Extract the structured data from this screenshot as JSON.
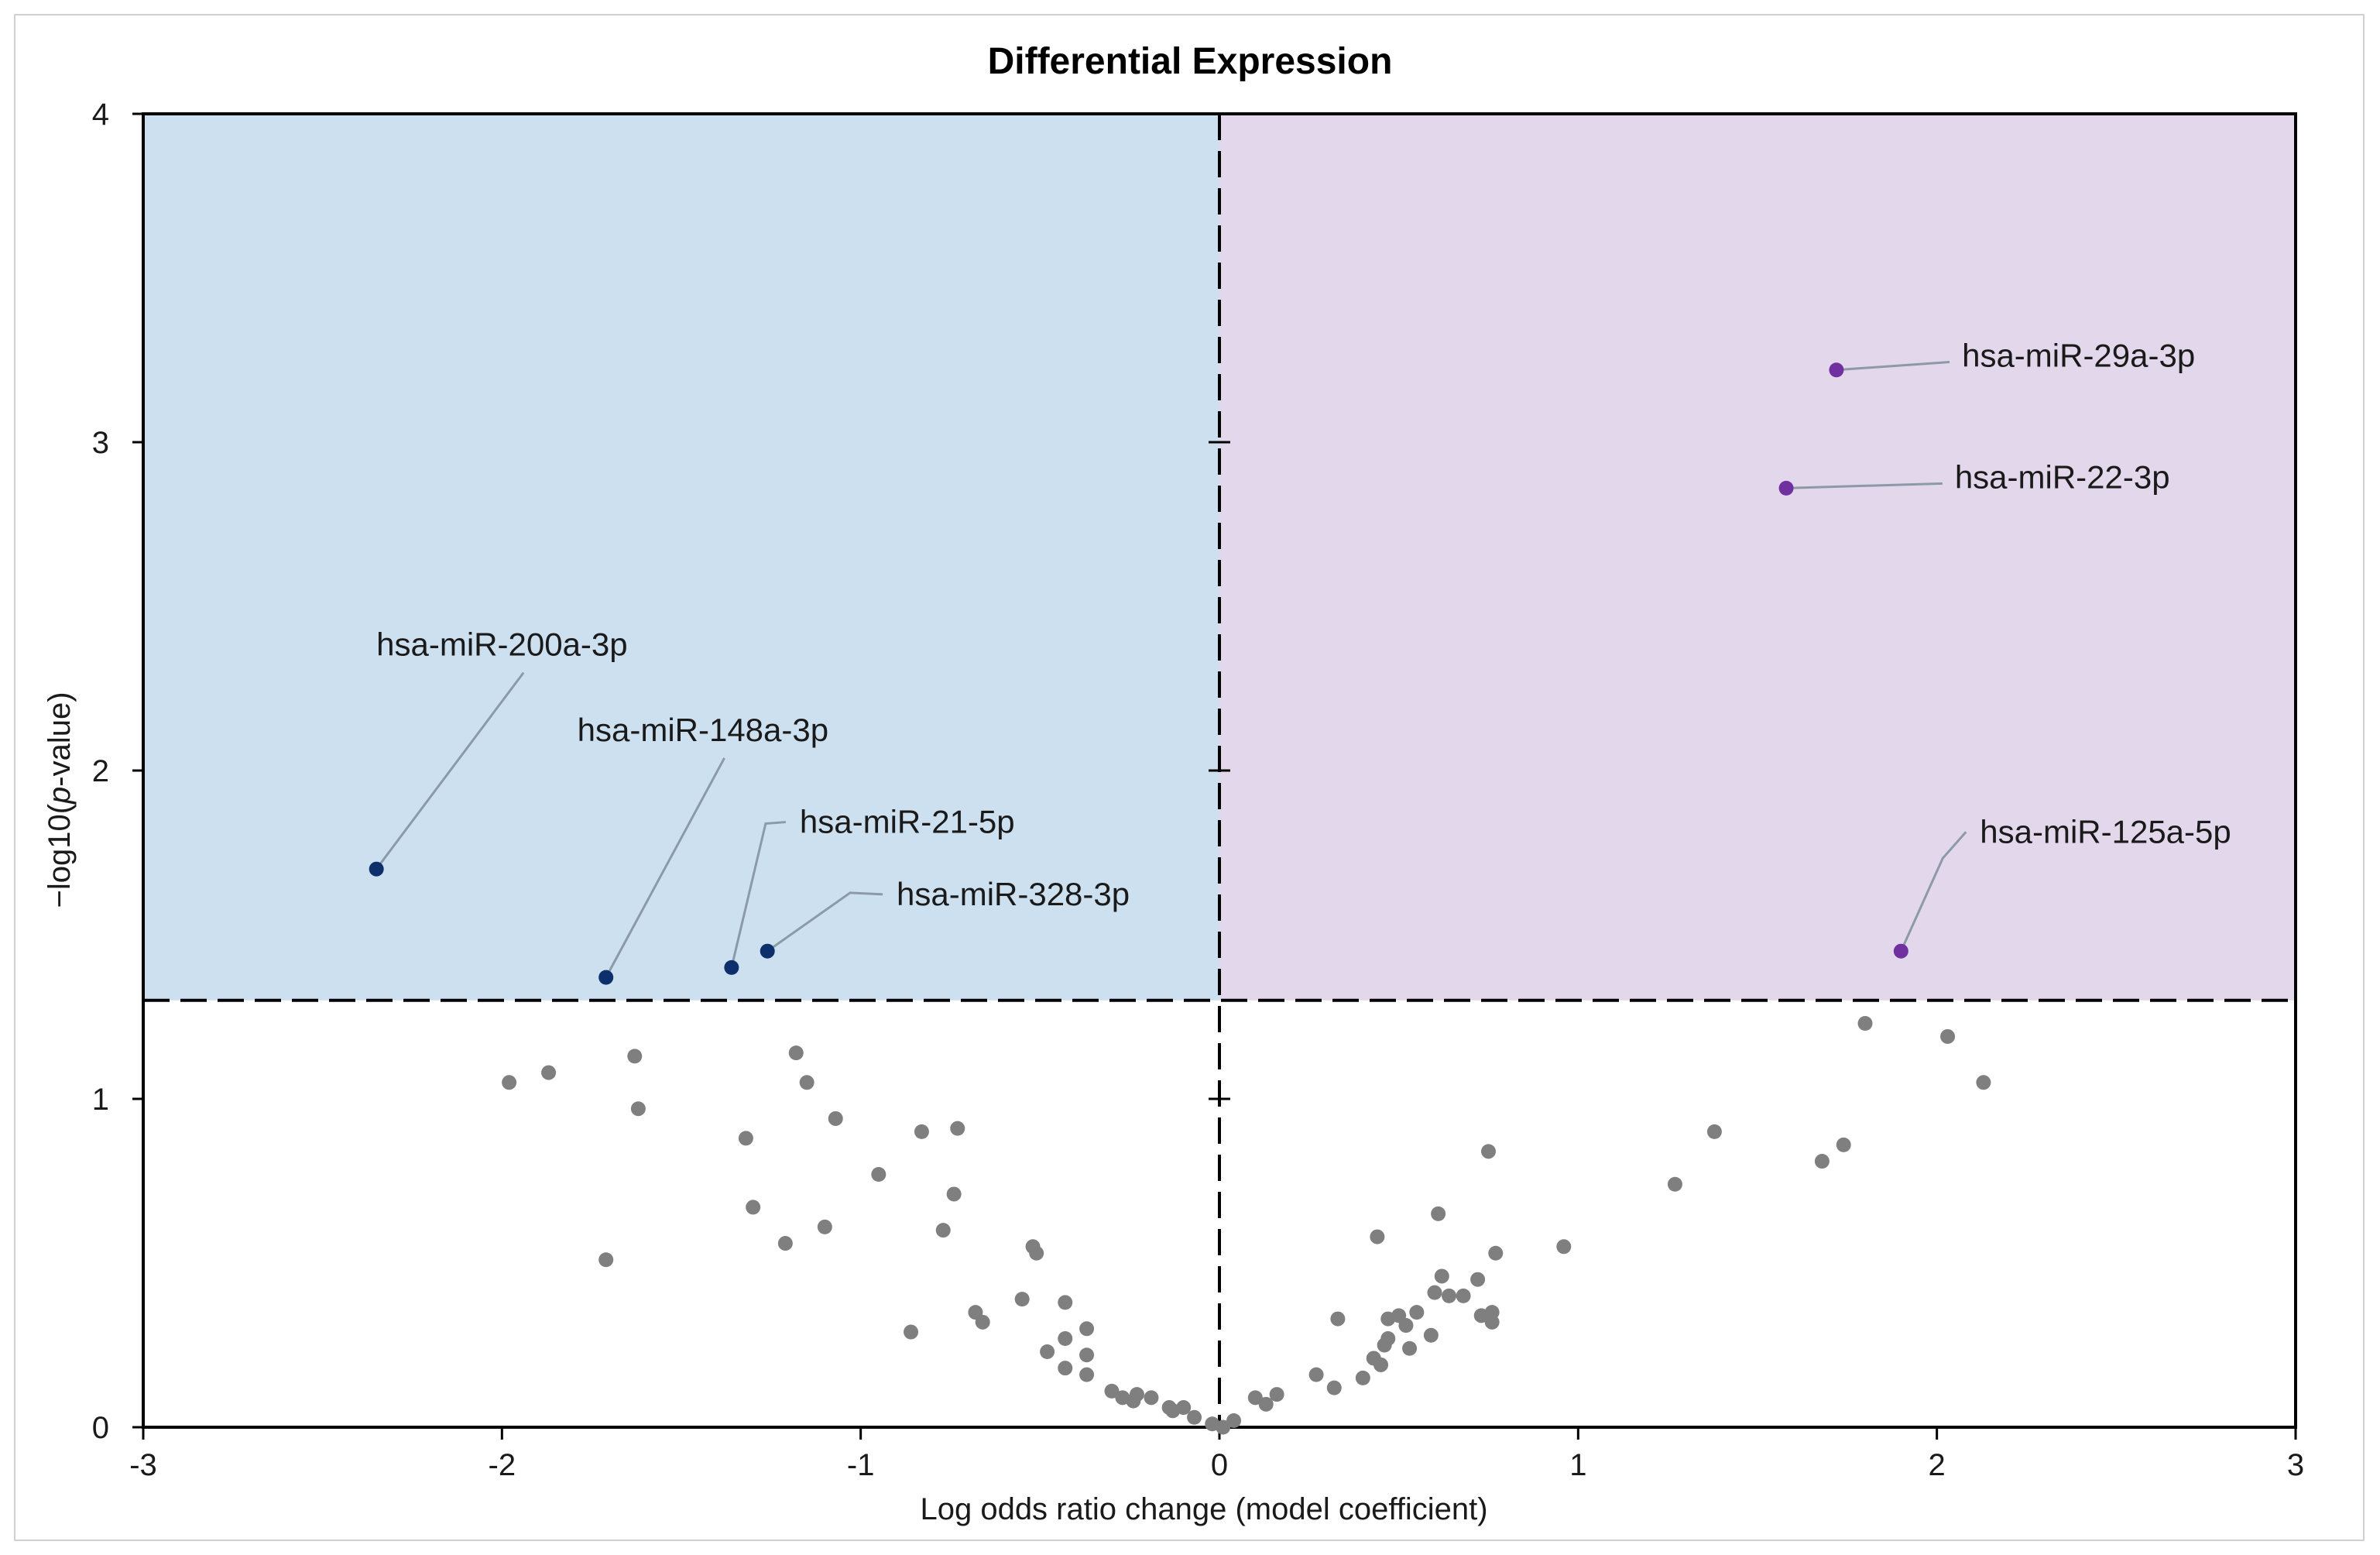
{
  "chart_data": {
    "type": "scatter",
    "title": "Differential Expression",
    "xlabel": "Log odds ratio change (model coefficient)",
    "ylabel_prefix": "−log10(",
    "ylabel_italic": "p",
    "ylabel_suffix": "-value)",
    "xlim": [
      -3,
      3
    ],
    "ylim": [
      0,
      4
    ],
    "xticks": [
      -3,
      -2,
      -1,
      0,
      1,
      2,
      3
    ],
    "yticks": [
      0,
      1,
      2,
      3,
      4
    ],
    "significance_threshold_y": 1.3,
    "center_line_x": 0,
    "regions": [
      {
        "name": "downregulated",
        "x": [
          -3,
          0
        ],
        "y": [
          1.3,
          4
        ],
        "color": "#cce0f0"
      },
      {
        "name": "upregulated",
        "x": [
          0,
          3
        ],
        "y": [
          1.3,
          4
        ],
        "color": "#e3d7ec"
      }
    ],
    "colors": {
      "nonsignificant": "#7f7f7f",
      "down": "#0d2f6b",
      "up": "#7030a0",
      "leader": "#8c9aa8",
      "threshold_line": "#000000"
    },
    "significant_points": [
      {
        "label": "hsa-miR-200a-3p",
        "x": -2.35,
        "y": 1.7,
        "group": "down"
      },
      {
        "label": "hsa-miR-148a-3p",
        "x": -1.71,
        "y": 1.37,
        "group": "down"
      },
      {
        "label": "hsa-miR-21-5p",
        "x": -1.36,
        "y": 1.4,
        "group": "down"
      },
      {
        "label": "hsa-miR-328-3p",
        "x": -1.26,
        "y": 1.45,
        "group": "down"
      },
      {
        "label": "hsa-miR-29a-3p",
        "x": 1.72,
        "y": 3.22,
        "group": "up"
      },
      {
        "label": "hsa-miR-22-3p",
        "x": 1.58,
        "y": 2.86,
        "group": "up"
      },
      {
        "label": "hsa-miR-125a-5p",
        "x": 1.9,
        "y": 1.45,
        "group": "up"
      }
    ],
    "annotation_text_anchor": [
      {
        "x": -2.35,
        "y": 2.35
      },
      {
        "x": -1.79,
        "y": 2.09
      },
      {
        "x": -1.17,
        "y": 1.81
      },
      {
        "x": -0.9,
        "y": 1.59
      },
      {
        "x": 2.07,
        "y": 3.23
      },
      {
        "x": 2.05,
        "y": 2.86
      },
      {
        "x": 2.12,
        "y": 1.78
      }
    ],
    "nonsignificant_points": [
      {
        "x": -1.98,
        "y": 1.05
      },
      {
        "x": -1.87,
        "y": 1.08
      },
      {
        "x": -1.63,
        "y": 1.13
      },
      {
        "x": -1.62,
        "y": 0.97
      },
      {
        "x": -1.71,
        "y": 0.51
      },
      {
        "x": -1.32,
        "y": 0.88
      },
      {
        "x": -1.3,
        "y": 0.67
      },
      {
        "x": -1.21,
        "y": 0.56
      },
      {
        "x": -1.18,
        "y": 1.14
      },
      {
        "x": -1.15,
        "y": 1.05
      },
      {
        "x": -1.1,
        "y": 0.61
      },
      {
        "x": -1.07,
        "y": 0.94
      },
      {
        "x": -0.95,
        "y": 0.77
      },
      {
        "x": -0.86,
        "y": 0.29
      },
      {
        "x": -0.83,
        "y": 0.9
      },
      {
        "x": -0.77,
        "y": 0.6
      },
      {
        "x": -0.74,
        "y": 0.71
      },
      {
        "x": -0.73,
        "y": 0.91
      },
      {
        "x": -0.68,
        "y": 0.35
      },
      {
        "x": -0.66,
        "y": 0.32
      },
      {
        "x": -0.55,
        "y": 0.39
      },
      {
        "x": -0.52,
        "y": 0.55
      },
      {
        "x": -0.51,
        "y": 0.53
      },
      {
        "x": -0.48,
        "y": 0.23
      },
      {
        "x": -0.43,
        "y": 0.38
      },
      {
        "x": -0.43,
        "y": 0.27
      },
      {
        "x": -0.43,
        "y": 0.18
      },
      {
        "x": -0.37,
        "y": 0.3
      },
      {
        "x": -0.37,
        "y": 0.22
      },
      {
        "x": -0.37,
        "y": 0.16
      },
      {
        "x": -0.3,
        "y": 0.11
      },
      {
        "x": -0.27,
        "y": 0.09
      },
      {
        "x": -0.24,
        "y": 0.08
      },
      {
        "x": -0.23,
        "y": 0.1
      },
      {
        "x": -0.19,
        "y": 0.09
      },
      {
        "x": -0.14,
        "y": 0.06
      },
      {
        "x": -0.13,
        "y": 0.05
      },
      {
        "x": -0.1,
        "y": 0.06
      },
      {
        "x": -0.07,
        "y": 0.03
      },
      {
        "x": -0.02,
        "y": 0.01
      },
      {
        "x": 0.01,
        "y": 0.0
      },
      {
        "x": 0.04,
        "y": 0.02
      },
      {
        "x": 0.1,
        "y": 0.09
      },
      {
        "x": 0.13,
        "y": 0.07
      },
      {
        "x": 0.16,
        "y": 0.1
      },
      {
        "x": 0.27,
        "y": 0.16
      },
      {
        "x": 0.32,
        "y": 0.12
      },
      {
        "x": 0.33,
        "y": 0.33
      },
      {
        "x": 0.4,
        "y": 0.15
      },
      {
        "x": 0.43,
        "y": 0.21
      },
      {
        "x": 0.44,
        "y": 0.58
      },
      {
        "x": 0.45,
        "y": 0.19
      },
      {
        "x": 0.46,
        "y": 0.25
      },
      {
        "x": 0.47,
        "y": 0.27
      },
      {
        "x": 0.47,
        "y": 0.33
      },
      {
        "x": 0.5,
        "y": 0.34
      },
      {
        "x": 0.52,
        "y": 0.31
      },
      {
        "x": 0.53,
        "y": 0.24
      },
      {
        "x": 0.55,
        "y": 0.35
      },
      {
        "x": 0.59,
        "y": 0.28
      },
      {
        "x": 0.6,
        "y": 0.41
      },
      {
        "x": 0.61,
        "y": 0.65
      },
      {
        "x": 0.62,
        "y": 0.46
      },
      {
        "x": 0.64,
        "y": 0.4
      },
      {
        "x": 0.68,
        "y": 0.4
      },
      {
        "x": 0.72,
        "y": 0.45
      },
      {
        "x": 0.73,
        "y": 0.34
      },
      {
        "x": 0.75,
        "y": 0.84
      },
      {
        "x": 0.76,
        "y": 0.35
      },
      {
        "x": 0.76,
        "y": 0.32
      },
      {
        "x": 0.77,
        "y": 0.53
      },
      {
        "x": 0.96,
        "y": 0.55
      },
      {
        "x": 1.27,
        "y": 0.74
      },
      {
        "x": 1.38,
        "y": 0.9
      },
      {
        "x": 1.68,
        "y": 0.81
      },
      {
        "x": 1.74,
        "y": 0.86
      },
      {
        "x": 1.8,
        "y": 1.23
      },
      {
        "x": 2.03,
        "y": 1.19
      },
      {
        "x": 2.13,
        "y": 1.05
      }
    ]
  }
}
